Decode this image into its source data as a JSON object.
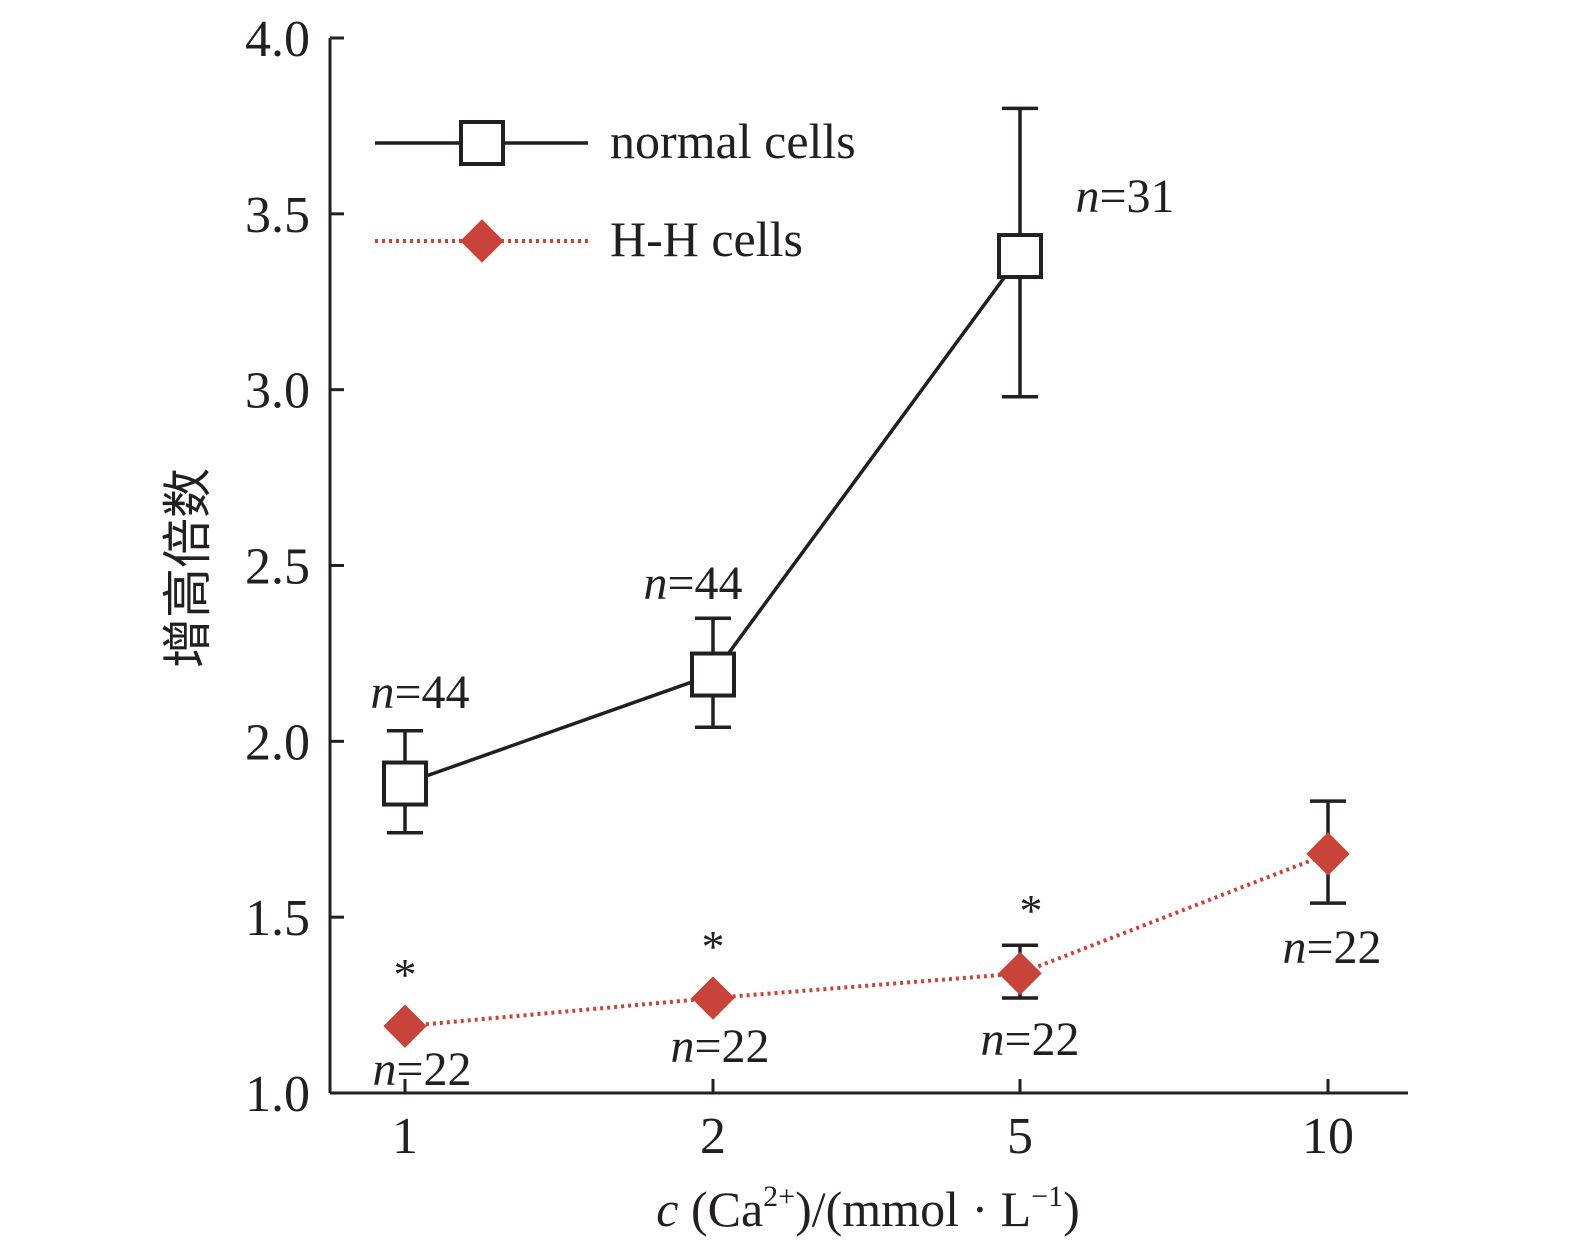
{
  "chart_data": {
    "type": "line",
    "categories": [
      "1",
      "2",
      "5",
      "10"
    ],
    "ylabel": "增高倍数",
    "xlabel": {
      "var": "c",
      "pre": " (Ca",
      "sup1": "2+",
      "mid": ")/(mmol · L",
      "sup2": "−1",
      "post": ")"
    },
    "ylim": [
      1.0,
      4.0
    ],
    "yticks": [
      "1.0",
      "1.5",
      "2.0",
      "2.5",
      "3.0",
      "3.5",
      "4.0"
    ],
    "legend_position": "top-left",
    "series": [
      {
        "name": "normal cells",
        "marker": "open-square",
        "line": "solid",
        "color": "#231f20",
        "values": [
          1.88,
          2.19,
          3.38,
          null
        ],
        "err_low": [
          1.74,
          2.04,
          2.98,
          null
        ],
        "err_high": [
          2.03,
          2.35,
          3.8,
          null
        ],
        "n_labels": [
          "=44",
          "=44",
          "=31",
          null
        ]
      },
      {
        "name": "H-H cells",
        "marker": "diamond",
        "line": "dotted",
        "color": "#c8433a",
        "values": [
          1.19,
          1.27,
          1.34,
          1.68
        ],
        "err_low": [
          null,
          null,
          1.27,
          1.54
        ],
        "err_high": [
          null,
          null,
          1.42,
          1.83
        ],
        "n_labels": [
          "=22",
          "=22",
          "=22",
          "=22"
        ],
        "significance": [
          "*",
          "*",
          "*",
          ""
        ]
      }
    ]
  }
}
